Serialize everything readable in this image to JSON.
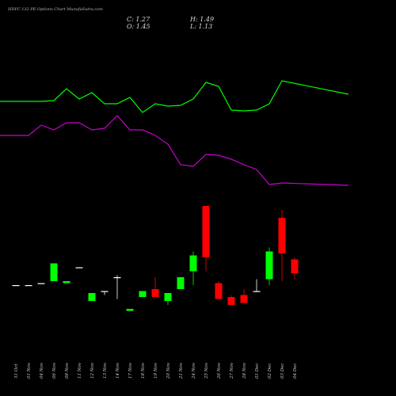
{
  "header": {
    "title": "HDFC 132 PE Options Chart MunafaSutra.com",
    "close_text": "C: 1.27",
    "open_text": "O: 1.45",
    "high_text": "H: 1.49",
    "low_text": "L: 1.13"
  },
  "colors": {
    "background": "#000000",
    "up": "#00ff00",
    "down": "#ff0000",
    "line_green": "#00ff00",
    "line_magenta": "#cc00cc",
    "neutral": "#ffffff",
    "axis_text": "#cccccc"
  },
  "chart_data": [
    {
      "type": "line",
      "title": "",
      "x": [
        "31 Oct",
        "01 Nov",
        "04 Nov",
        "06 Nov",
        "08 Nov",
        "11 Nov",
        "12 Nov",
        "13 Nov",
        "14 Nov",
        "17 Nov",
        "18 Nov",
        "19 Nov",
        "20 Nov",
        "21 Nov",
        "24 Nov",
        "25 Nov",
        "26 Nov",
        "27 Nov",
        "28 Nov",
        "01 Dec",
        "02 Dec",
        "03 Dec",
        "04 Dec"
      ],
      "series": [
        {
          "color": "#00ff00",
          "values": [
            128,
            128,
            128,
            127,
            112,
            125,
            117,
            131,
            131,
            123,
            142,
            131,
            134,
            133,
            125,
            104,
            109,
            139,
            140,
            139,
            131,
            102,
            119
          ]
        },
        {
          "color": "#cc00cc",
          "values": [
            171,
            171,
            158,
            164,
            155,
            155,
            164,
            162,
            146,
            164,
            164,
            171,
            182,
            208,
            210,
            195,
            196,
            201,
            208,
            214,
            233,
            231,
            234
          ]
        }
      ],
      "y_inverted": true,
      "ylim": [
        0,
        500
      ],
      "grid": false
    },
    {
      "type": "candlestick",
      "title": "",
      "x": [
        "31 Oct",
        "01 Nov",
        "04 Nov",
        "06 Nov",
        "08 Nov",
        "11 Nov",
        "12 Nov",
        "13 Nov",
        "14 Nov",
        "17 Nov",
        "18 Nov",
        "19 Nov",
        "20 Nov",
        "21 Nov",
        "24 Nov",
        "25 Nov",
        "26 Nov",
        "27 Nov",
        "28 Nov",
        "01 Dec",
        "02 Dec",
        "03 Dec",
        "04 Dec"
      ],
      "candles": [
        {
          "o": 1.11,
          "h": 1.11,
          "l": 1.11,
          "c": 1.11
        },
        {
          "o": 1.11,
          "h": 1.11,
          "l": 1.11,
          "c": 1.11
        },
        {
          "o": 1.12,
          "h": 1.12,
          "l": 1.12,
          "c": 1.12
        },
        {
          "o": 1.13,
          "h": 1.22,
          "l": 1.13,
          "c": 1.22
        },
        {
          "o": 1.12,
          "h": 1.13,
          "l": 1.12,
          "c": 1.13
        },
        {
          "o": 1.2,
          "h": 1.2,
          "l": 1.2,
          "c": 1.2
        },
        {
          "o": 1.03,
          "h": 1.07,
          "l": 1.03,
          "c": 1.07
        },
        {
          "o": 1.08,
          "h": 1.08,
          "l": 1.06,
          "c": 1.08
        },
        {
          "o": 1.15,
          "h": 1.16,
          "l": 1.04,
          "c": 1.15
        },
        {
          "o": 0.98,
          "h": 0.99,
          "l": 0.98,
          "c": 0.99
        },
        {
          "o": 1.05,
          "h": 1.08,
          "l": 1.05,
          "c": 1.08
        },
        {
          "o": 1.09,
          "h": 1.15,
          "l": 1.05,
          "c": 1.05
        },
        {
          "o": 1.03,
          "h": 1.07,
          "l": 1.01,
          "c": 1.07
        },
        {
          "o": 1.09,
          "h": 1.15,
          "l": 1.09,
          "c": 1.15
        },
        {
          "o": 1.18,
          "h": 1.28,
          "l": 1.11,
          "c": 1.26
        },
        {
          "o": 1.51,
          "h": 1.51,
          "l": 1.18,
          "c": 1.25
        },
        {
          "o": 1.12,
          "h": 1.13,
          "l": 1.04,
          "c": 1.04
        },
        {
          "o": 1.05,
          "h": 1.06,
          "l": 1.01,
          "c": 1.01
        },
        {
          "o": 1.06,
          "h": 1.09,
          "l": 1.02,
          "c": 1.02
        },
        {
          "o": 1.08,
          "h": 1.14,
          "l": 1.08,
          "c": 1.08
        },
        {
          "o": 1.14,
          "h": 1.3,
          "l": 1.11,
          "c": 1.28
        },
        {
          "o": 1.45,
          "h": 1.49,
          "l": 1.13,
          "c": 1.27
        },
        {
          "o": 1.24,
          "h": 1.25,
          "l": 1.14,
          "c": 1.17
        }
      ],
      "xlabel": "",
      "ylabel": "",
      "ylim": [
        0.95,
        1.55
      ],
      "grid": false
    }
  ]
}
